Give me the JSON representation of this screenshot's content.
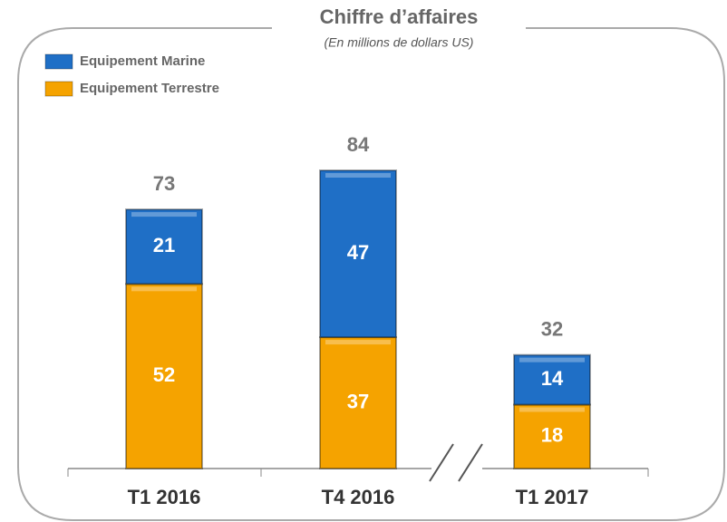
{
  "chart_data": {
    "type": "stacked_bar",
    "title": "Chiffre d’affaires",
    "subtitle": "(En millions de dollars US)",
    "categories": [
      "T1 2016",
      "T4 2016",
      "T1 2017"
    ],
    "series": [
      {
        "name": "Equipement Terrestre",
        "color": "#f5a300",
        "values": [
          52,
          37,
          18
        ]
      },
      {
        "name": "Equipement Marine",
        "color": "#1f6fc6",
        "values": [
          21,
          47,
          14
        ]
      }
    ],
    "totals": [
      73,
      84,
      32
    ]
  }
}
